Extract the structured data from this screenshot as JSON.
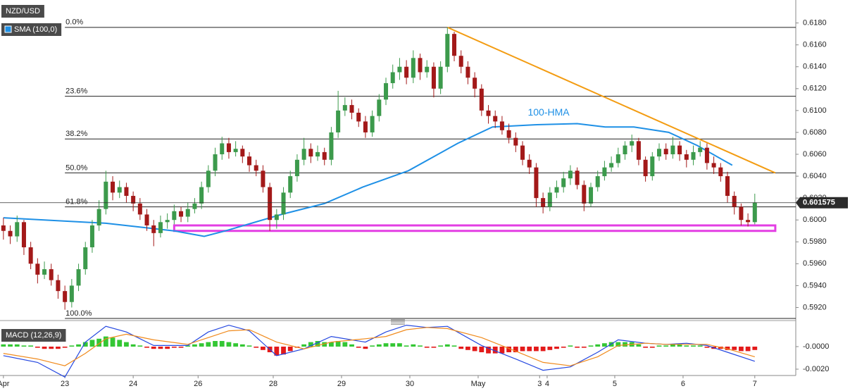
{
  "chart_data": [
    {
      "type": "candlestick",
      "title": "NZD/USD",
      "indicator": "SMA (100,0)",
      "up_color": "#3c9a4c",
      "down_color": "#a31919",
      "xlim": [
        -0.5,
        116
      ],
      "xticks": [
        {
          "value": 0,
          "label": "Apr"
        },
        {
          "value": 9,
          "label": "23"
        },
        {
          "value": 19,
          "label": "24"
        },
        {
          "value": 28.5,
          "label": "26"
        },
        {
          "value": 39.5,
          "label": "28"
        },
        {
          "value": 49.5,
          "label": "29"
        },
        {
          "value": 59.5,
          "label": "30"
        },
        {
          "value": 69.5,
          "label": "May"
        },
        {
          "value": 78.5,
          "label": "3"
        },
        {
          "value": 79.6,
          "label": "4"
        },
        {
          "value": 89.5,
          "label": "5"
        },
        {
          "value": 99.5,
          "label": "6"
        },
        {
          "value": 110,
          "label": "7"
        }
      ],
      "ylim": [
        0.591,
        0.6201
      ],
      "yticks": [
        {
          "value": 0.592,
          "label": "0.5920"
        },
        {
          "value": 0.594,
          "label": "0.5940"
        },
        {
          "value": 0.596,
          "label": "0.5960"
        },
        {
          "value": 0.598,
          "label": "0.5980"
        },
        {
          "value": 0.6,
          "label": "0.6000"
        },
        {
          "value": 0.602,
          "label": "0.6020"
        },
        {
          "value": 0.604,
          "label": "0.6040"
        },
        {
          "value": 0.606,
          "label": "0.6060"
        },
        {
          "value": 0.608,
          "label": "0.6080"
        },
        {
          "value": 0.61,
          "label": "0.6100"
        },
        {
          "value": 0.612,
          "label": "0.6120"
        },
        {
          "value": 0.614,
          "label": "0.6140"
        },
        {
          "value": 0.616,
          "label": "0.6160"
        },
        {
          "value": 0.618,
          "label": "0.6180"
        }
      ],
      "open": [
        0.5995,
        0.599,
        0.5985,
        0.5998,
        0.5975,
        0.596,
        0.595,
        0.5955,
        0.5945,
        0.5935,
        0.5925,
        0.594,
        0.5955,
        0.5975,
        0.5995,
        0.601,
        0.6035,
        0.6025,
        0.603,
        0.6022,
        0.6015,
        0.6005,
        0.5995,
        0.5988,
        0.5998,
        0.6,
        0.6008,
        0.6003,
        0.601,
        0.6015,
        0.603,
        0.6045,
        0.606,
        0.607,
        0.6062,
        0.6065,
        0.6058,
        0.605,
        0.6045,
        0.603,
        0.6,
        0.6005,
        0.6025,
        0.604,
        0.6055,
        0.6065,
        0.6058,
        0.6062,
        0.6055,
        0.608,
        0.61,
        0.6105,
        0.6098,
        0.609,
        0.608,
        0.6095,
        0.611,
        0.6125,
        0.6135,
        0.614,
        0.613,
        0.6148,
        0.6135,
        0.614,
        0.612,
        0.614,
        0.617,
        0.615,
        0.614,
        0.613,
        0.612,
        0.61,
        0.6095,
        0.609,
        0.6082,
        0.6075,
        0.6068,
        0.6055,
        0.6048,
        0.602,
        0.6012,
        0.6025,
        0.603,
        0.6038,
        0.6045,
        0.6032,
        0.6015,
        0.603,
        0.604,
        0.6048,
        0.6052,
        0.606,
        0.6068,
        0.6072,
        0.6055,
        0.604,
        0.6058,
        0.6065,
        0.606,
        0.6068,
        0.606,
        0.6055,
        0.6062,
        0.6066,
        0.6052,
        0.6048,
        0.604,
        0.6022,
        0.6012,
        0.6,
        0.5998
      ],
      "high": [
        0.6002,
        0.5995,
        0.6004,
        0.6,
        0.598,
        0.5965,
        0.5962,
        0.596,
        0.595,
        0.594,
        0.5946,
        0.596,
        0.598,
        0.6,
        0.6018,
        0.6045,
        0.604,
        0.6036,
        0.6034,
        0.6026,
        0.602,
        0.601,
        0.6,
        0.6004,
        0.6006,
        0.6014,
        0.6012,
        0.6016,
        0.602,
        0.6035,
        0.605,
        0.6066,
        0.6076,
        0.6075,
        0.6072,
        0.6068,
        0.6062,
        0.6055,
        0.605,
        0.6034,
        0.601,
        0.603,
        0.6045,
        0.606,
        0.6075,
        0.607,
        0.6068,
        0.6066,
        0.6085,
        0.6118,
        0.6112,
        0.611,
        0.6102,
        0.6095,
        0.61,
        0.6115,
        0.613,
        0.6142,
        0.6148,
        0.6146,
        0.6155,
        0.6152,
        0.6146,
        0.6144,
        0.6145,
        0.6176,
        0.6172,
        0.6155,
        0.6145,
        0.6135,
        0.6124,
        0.6105,
        0.61,
        0.6095,
        0.6088,
        0.608,
        0.6072,
        0.606,
        0.6052,
        0.6025,
        0.603,
        0.6036,
        0.6044,
        0.605,
        0.6048,
        0.6036,
        0.6034,
        0.6045,
        0.6054,
        0.6058,
        0.6066,
        0.6072,
        0.6078,
        0.6075,
        0.6058,
        0.6062,
        0.607,
        0.607,
        0.6076,
        0.6072,
        0.6064,
        0.6068,
        0.6072,
        0.607,
        0.6058,
        0.6052,
        0.6044,
        0.6026,
        0.6015,
        0.6006,
        0.6024
      ],
      "low": [
        0.5982,
        0.5978,
        0.598,
        0.5968,
        0.5955,
        0.5942,
        0.5946,
        0.594,
        0.5928,
        0.5918,
        0.592,
        0.5935,
        0.595,
        0.597,
        0.599,
        0.6005,
        0.6018,
        0.602,
        0.6016,
        0.6008,
        0.6,
        0.599,
        0.5976,
        0.5984,
        0.5992,
        0.5996,
        0.5998,
        0.5998,
        0.6006,
        0.601,
        0.6025,
        0.604,
        0.6055,
        0.6056,
        0.6058,
        0.6052,
        0.6044,
        0.604,
        0.6025,
        0.599,
        0.5992,
        0.6,
        0.602,
        0.6035,
        0.605,
        0.6052,
        0.6054,
        0.605,
        0.605,
        0.6075,
        0.6095,
        0.6092,
        0.6085,
        0.6075,
        0.6076,
        0.609,
        0.6105,
        0.612,
        0.6128,
        0.6124,
        0.6125,
        0.6128,
        0.613,
        0.6112,
        0.6115,
        0.6135,
        0.6145,
        0.6134,
        0.6124,
        0.6112,
        0.6095,
        0.6088,
        0.6084,
        0.6078,
        0.607,
        0.6062,
        0.605,
        0.6042,
        0.6012,
        0.6006,
        0.6008,
        0.602,
        0.6025,
        0.6032,
        0.6028,
        0.6008,
        0.6012,
        0.6026,
        0.6036,
        0.6044,
        0.6048,
        0.6055,
        0.6062,
        0.605,
        0.6035,
        0.6036,
        0.6054,
        0.6055,
        0.6056,
        0.6054,
        0.6048,
        0.605,
        0.6058,
        0.6046,
        0.6042,
        0.6035,
        0.6016,
        0.6005,
        0.5995,
        0.5994,
        0.5996
      ],
      "close": [
        0.599,
        0.5985,
        0.5998,
        0.5975,
        0.596,
        0.595,
        0.5955,
        0.5945,
        0.5935,
        0.5925,
        0.594,
        0.5955,
        0.5975,
        0.5995,
        0.601,
        0.6035,
        0.6025,
        0.603,
        0.6022,
        0.6015,
        0.6005,
        0.5995,
        0.5988,
        0.5998,
        0.6,
        0.6008,
        0.6003,
        0.601,
        0.6015,
        0.603,
        0.6045,
        0.606,
        0.607,
        0.6062,
        0.6065,
        0.6058,
        0.605,
        0.6045,
        0.603,
        0.6,
        0.6005,
        0.6025,
        0.604,
        0.6055,
        0.6065,
        0.6058,
        0.6062,
        0.6055,
        0.608,
        0.61,
        0.6105,
        0.6098,
        0.609,
        0.608,
        0.6095,
        0.611,
        0.6125,
        0.6135,
        0.614,
        0.613,
        0.6148,
        0.6135,
        0.614,
        0.612,
        0.614,
        0.617,
        0.615,
        0.614,
        0.613,
        0.612,
        0.61,
        0.6095,
        0.609,
        0.6082,
        0.6075,
        0.6068,
        0.6055,
        0.6048,
        0.602,
        0.6012,
        0.6025,
        0.603,
        0.6038,
        0.6045,
        0.6032,
        0.6015,
        0.603,
        0.604,
        0.6048,
        0.6052,
        0.606,
        0.6068,
        0.6072,
        0.6055,
        0.604,
        0.6058,
        0.6065,
        0.606,
        0.6068,
        0.606,
        0.6055,
        0.6062,
        0.6066,
        0.6052,
        0.6048,
        0.604,
        0.6022,
        0.6012,
        0.6,
        0.5998,
        0.6016
      ],
      "hma": {
        "name": "100-HMA",
        "color": "#1e90e6",
        "x": [
          0,
          15,
          25,
          29.4,
          32.5,
          40.7,
          47,
          52.6,
          59.3,
          66.5,
          71.6,
          77.8,
          84,
          88.1,
          92.3,
          97.4,
          101.6,
          106.7
        ],
        "values": [
          0.6002,
          0.5997,
          0.599,
          0.5985,
          0.599,
          0.6005,
          0.6015,
          0.603,
          0.6045,
          0.607,
          0.6085,
          0.6087,
          0.6088,
          0.6085,
          0.6085,
          0.608,
          0.6068,
          0.605
        ]
      },
      "trendline": {
        "color": "#f39c12",
        "x": [
          65,
          113
        ],
        "values": [
          0.6176,
          0.6043
        ]
      },
      "zone": {
        "color": "#e33ee3",
        "x": [
          25,
          113
        ],
        "values": [
          0.5995,
          0.599
        ]
      },
      "fib_levels": [
        {
          "label": "0.0%",
          "value": 0.6176
        },
        {
          "label": "23.6%",
          "value": 0.6113
        },
        {
          "label": "38.2%",
          "value": 0.6074
        },
        {
          "label": "50.0%",
          "value": 0.6043
        },
        {
          "label": "61.8%",
          "value": 0.6012
        },
        {
          "label": "100.0%",
          "value": 0.591
        }
      ],
      "last_price": 0.601575
    },
    {
      "type": "macd",
      "title": "MACD (12,26,9)",
      "up_color": "#34c734",
      "down_color": "#e31a1a",
      "ylim": [
        -0.0025,
        0.002
      ],
      "yticks": [
        {
          "value": 0,
          "label": "-0.0000"
        },
        {
          "value": -0.002,
          "label": "-0.0020"
        }
      ],
      "histogram": [
        0.0002,
        0.0002,
        0.0002,
        0.0001,
        0.0001,
        -0.0001,
        -0.0002,
        -0.0002,
        -0.0002,
        -0.0001,
        0.0001,
        0.0002,
        0.0004,
        0.0006,
        0.0007,
        0.0009,
        0.0008,
        0.0006,
        0.0004,
        0.0002,
        0.0001,
        -0.0001,
        -0.0002,
        -0.0002,
        -0.0002,
        -0.0001,
        -0.0001,
        0.0001,
        0.0002,
        0.0003,
        0.0004,
        0.0005,
        0.0005,
        0.0004,
        0.0003,
        0.0002,
        0.0001,
        -0.0001,
        -0.0003,
        -0.0005,
        -0.0008,
        -0.0007,
        -0.0004,
        -0.0001,
        0.0002,
        0.0004,
        0.0005,
        0.0004,
        0.0004,
        0.0005,
        0.0004,
        0.0002,
        -0.0001,
        -0.0002,
        0.0001,
        0.0002,
        0.0003,
        0.0003,
        0.0003,
        0.0001,
        0.0002,
        0.0001,
        -0.0001,
        -0.0001,
        0.0001,
        0.0002,
        0.0001,
        -0.0002,
        -0.0003,
        -0.0004,
        -0.0005,
        -0.0006,
        -0.0006,
        -0.0006,
        -0.0005,
        -0.0005,
        -0.0004,
        -0.0004,
        -0.0004,
        -0.0004,
        -0.0003,
        -0.0002,
        -0.0001,
        0.0001,
        -0.0001,
        -0.0001,
        0.0001,
        0.0002,
        0.0003,
        0.0004,
        0.0004,
        0.0004,
        0.0004,
        0.0002,
        -0.0001,
        -0.0001,
        0.0001,
        0.0001,
        0.0002,
        0.0002,
        0.0001,
        0.0001,
        0.0001,
        -0.0001,
        -0.0002,
        -0.0002,
        -0.0003,
        -0.0003,
        -0.0004,
        -0.0004,
        -0.0003
      ],
      "series": [
        {
          "color": "#2447e0",
          "x": [
            0,
            5,
            9,
            12,
            15,
            18,
            22,
            27,
            30,
            33,
            36,
            40,
            44,
            48,
            53,
            56,
            59,
            62,
            65,
            70,
            75,
            79,
            83,
            87,
            90,
            94,
            97,
            100,
            103,
            106,
            110
          ],
          "values": [
            -0.0008,
            -0.0014,
            -0.0027,
            0.0004,
            0.0018,
            0.0013,
            0.0001,
            0.0001,
            0.0013,
            0.0019,
            0.0014,
            -0.0008,
            -0.0002,
            0.0009,
            0.0004,
            0.0013,
            0.0019,
            0.0017,
            0.0018,
            0.0001,
            -0.0011,
            -0.0021,
            -0.0018,
            -0.0005,
            0.0006,
            0.0003,
            0.0002,
            0.0003,
            0.0001,
            -0.0005,
            -0.0013
          ]
        },
        {
          "color": "#f08a1c",
          "x": [
            0,
            5,
            9,
            12,
            15,
            18,
            22,
            27,
            30,
            33,
            36,
            40,
            44,
            48,
            53,
            56,
            59,
            62,
            65,
            70,
            75,
            79,
            83,
            87,
            90,
            94,
            97,
            100,
            103,
            106,
            110
          ],
          "values": [
            -0.0006,
            -0.0011,
            -0.0017,
            -0.0006,
            0.0007,
            0.0011,
            0.0006,
            0.0002,
            0.0008,
            0.0014,
            0.0015,
            0.0004,
            -0.0002,
            0.0004,
            0.0007,
            0.0009,
            0.0015,
            0.0017,
            0.0016,
            0.0008,
            -0.0004,
            -0.0014,
            -0.0017,
            -0.0009,
            0.0001,
            0.0003,
            0.0002,
            0.0002,
            0.0002,
            -0.0002,
            -0.0009
          ]
        }
      ]
    }
  ]
}
